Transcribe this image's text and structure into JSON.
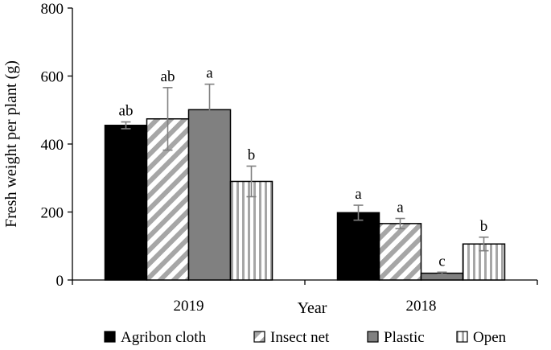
{
  "chart_data": {
    "type": "bar",
    "title": "",
    "xlabel": "Year",
    "ylabel": "Fresh weight per plant (g)",
    "ylim": [
      0,
      800
    ],
    "yticks": [
      0,
      200,
      400,
      600,
      800
    ],
    "grid": false,
    "legend_position": "bottom",
    "categories": [
      "2019",
      "2018"
    ],
    "series": [
      {
        "name": "Agribon cloth",
        "fill": "solid",
        "color": "#000000",
        "values": [
          455,
          198
        ],
        "errors": [
          10,
          22
        ],
        "letters": [
          "ab",
          "a"
        ]
      },
      {
        "name": "Insect net",
        "fill": "diagonal-stripes",
        "color": "#a6a6a6",
        "values": [
          474,
          166
        ],
        "errors": [
          92,
          15
        ],
        "letters": [
          "ab",
          "a"
        ]
      },
      {
        "name": "Plastic",
        "fill": "solid",
        "color": "#808080",
        "values": [
          501,
          20
        ],
        "errors": [
          75,
          3
        ],
        "letters": [
          "a",
          "c"
        ]
      },
      {
        "name": "Open",
        "fill": "vertical-stripes",
        "color": "#a6a6a6",
        "values": [
          290,
          106
        ],
        "errors": [
          45,
          20
        ],
        "letters": [
          "b",
          "b"
        ]
      }
    ]
  }
}
